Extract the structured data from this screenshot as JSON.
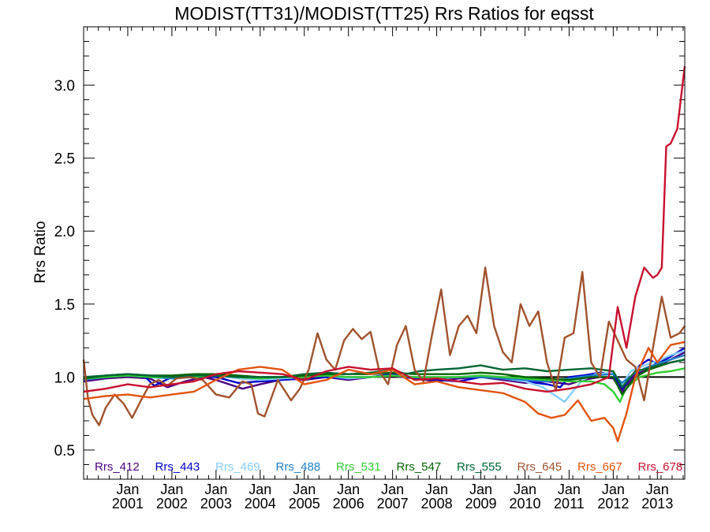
{
  "chart_data": {
    "type": "line",
    "title": "MODIST(TT31)/MODIST(TT25)  Rrs Ratios for eqsst",
    "ylabel": "Rrs Ratio",
    "xlabel": "",
    "xlim": [
      2000.0,
      2013.62
    ],
    "ylim": [
      0.3,
      3.4
    ],
    "yticks": [
      0.5,
      1.0,
      1.5,
      2.0,
      2.5,
      3.0
    ],
    "ytick_labels": [
      "0.5",
      "1.0",
      "1.5",
      "2.0",
      "2.5",
      "3.0"
    ],
    "xticks": [
      2001,
      2002,
      2003,
      2004,
      2005,
      2006,
      2007,
      2008,
      2009,
      2010,
      2011,
      2012,
      2013
    ],
    "xtick_month": "Jan",
    "xtick_years": [
      "2001",
      "2002",
      "2003",
      "2004",
      "2005",
      "2006",
      "2007",
      "2008",
      "2009",
      "2010",
      "2011",
      "2012",
      "2013"
    ],
    "reference_line": 1.0,
    "legend_placement": "bottom",
    "series": [
      {
        "name": "Rrs_412",
        "color": "#4b0082",
        "x": [
          2000.0,
          2000.5,
          2001.0,
          2001.5,
          2001.9,
          2002.3,
          2002.7,
          2003.0,
          2003.3,
          2003.6,
          2004.0,
          2004.3,
          2004.6,
          2005.0,
          2005.5,
          2006.0,
          2006.5,
          2007.0,
          2007.5,
          2008.0,
          2008.5,
          2009.0,
          2009.5,
          2010.0,
          2010.5,
          2011.0,
          2011.3,
          2011.7,
          2012.0,
          2012.2,
          2012.5,
          2012.8,
          2013.0,
          2013.3,
          2013.62
        ],
        "y": [
          0.97,
          0.99,
          1.0,
          0.99,
          0.93,
          0.97,
          1.0,
          0.98,
          0.95,
          0.92,
          0.95,
          0.97,
          0.99,
          0.98,
          1.0,
          0.98,
          1.0,
          1.01,
          0.99,
          0.97,
          0.99,
          1.0,
          0.98,
          0.96,
          0.97,
          0.95,
          0.98,
          1.0,
          0.99,
          0.9,
          1.02,
          1.05,
          1.08,
          1.12,
          1.17
        ]
      },
      {
        "name": "Rrs_443",
        "color": "#0000cd",
        "x": [
          2000.0,
          2000.5,
          2001.0,
          2001.4,
          2001.6,
          2002.0,
          2002.5,
          2003.0,
          2003.5,
          2004.0,
          2004.5,
          2005.0,
          2005.5,
          2006.0,
          2006.5,
          2007.0,
          2007.5,
          2008.0,
          2008.5,
          2009.0,
          2009.5,
          2010.0,
          2010.5,
          2010.8,
          2011.0,
          2011.3,
          2011.7,
          2012.0,
          2012.2,
          2012.4,
          2012.6,
          2012.8,
          2013.0,
          2013.3,
          2013.62
        ],
        "y": [
          0.99,
          1.0,
          1.01,
          1.0,
          0.94,
          1.0,
          1.01,
          1.0,
          0.96,
          0.97,
          0.98,
          0.99,
          1.0,
          0.99,
          1.0,
          1.02,
          0.99,
          0.98,
          0.97,
          1.0,
          0.99,
          0.97,
          0.95,
          0.93,
          1.0,
          1.01,
          1.03,
          1.02,
          0.92,
          1.0,
          1.08,
          1.12,
          1.09,
          1.14,
          1.2
        ]
      },
      {
        "name": "Rrs_469",
        "color": "#87cefa",
        "x": [
          2000.0,
          2000.5,
          2001.0,
          2001.5,
          2002.0,
          2002.5,
          2003.0,
          2003.5,
          2004.0,
          2004.5,
          2005.0,
          2005.5,
          2006.0,
          2006.5,
          2007.0,
          2007.5,
          2008.0,
          2008.5,
          2009.0,
          2009.5,
          2010.0,
          2010.4,
          2010.7,
          2010.9,
          2011.0,
          2011.3,
          2011.6,
          2012.0,
          2012.2,
          2012.4,
          2012.7,
          2013.0,
          2013.3,
          2013.62
        ],
        "y": [
          1.0,
          1.01,
          1.02,
          1.0,
          0.99,
          1.01,
          1.01,
          0.99,
          0.98,
          0.99,
          1.0,
          1.01,
          0.99,
          1.0,
          1.01,
          1.0,
          0.99,
          1.0,
          1.01,
          0.99,
          0.97,
          0.93,
          0.87,
          0.83,
          0.87,
          0.98,
          1.02,
          1.03,
          0.95,
          1.04,
          1.08,
          1.11,
          1.15,
          1.18
        ]
      },
      {
        "name": "Rrs_488",
        "color": "#1e7fc8",
        "x": [
          2000.0,
          2000.5,
          2001.0,
          2001.5,
          2002.0,
          2002.5,
          2003.0,
          2003.5,
          2004.0,
          2004.5,
          2005.0,
          2005.5,
          2006.0,
          2006.5,
          2007.0,
          2007.5,
          2008.0,
          2008.5,
          2009.0,
          2009.5,
          2010.0,
          2010.5,
          2011.0,
          2011.5,
          2012.0,
          2012.2,
          2012.5,
          2012.8,
          2013.0,
          2013.3,
          2013.62
        ],
        "y": [
          0.98,
          1.0,
          1.01,
          1.0,
          0.99,
          1.0,
          1.01,
          1.0,
          0.99,
          1.0,
          1.0,
          1.01,
          1.0,
          1.0,
          1.01,
          1.0,
          0.99,
          1.0,
          1.0,
          0.99,
          0.98,
          0.97,
          0.99,
          1.01,
          1.02,
          0.96,
          1.03,
          1.07,
          1.09,
          1.12,
          1.15
        ]
      },
      {
        "name": "Rrs_531",
        "color": "#32cd32",
        "x": [
          2000.0,
          2000.5,
          2001.0,
          2001.5,
          2002.0,
          2002.5,
          2003.0,
          2003.5,
          2004.0,
          2004.5,
          2005.0,
          2005.5,
          2006.0,
          2006.5,
          2007.0,
          2007.5,
          2008.0,
          2008.5,
          2009.0,
          2009.5,
          2010.0,
          2010.5,
          2011.0,
          2011.5,
          2011.8,
          2012.0,
          2012.15,
          2012.3,
          2012.6,
          2013.0,
          2013.3,
          2013.62
        ],
        "y": [
          0.99,
          1.0,
          1.01,
          1.0,
          1.0,
          1.0,
          1.01,
          1.0,
          0.99,
          1.0,
          1.0,
          1.01,
          1.0,
          1.0,
          1.01,
          1.0,
          1.0,
          1.0,
          1.01,
          1.0,
          0.99,
          0.98,
          0.97,
          0.97,
          0.95,
          0.9,
          0.83,
          0.93,
          1.0,
          1.03,
          1.04,
          1.06
        ]
      },
      {
        "name": "Rrs_547",
        "color": "#006400",
        "x": [
          2000.0,
          2000.5,
          2001.0,
          2001.5,
          2002.0,
          2002.5,
          2003.0,
          2003.5,
          2004.0,
          2004.5,
          2005.0,
          2005.5,
          2006.0,
          2006.5,
          2007.0,
          2007.5,
          2008.0,
          2008.5,
          2009.0,
          2009.5,
          2010.0,
          2010.5,
          2011.0,
          2011.5,
          2012.0,
          2012.2,
          2012.5,
          2012.8,
          2013.0,
          2013.3,
          2013.62
        ],
        "y": [
          0.99,
          1.01,
          1.02,
          1.01,
          1.01,
          1.02,
          1.02,
          1.01,
          1.0,
          1.0,
          1.01,
          1.02,
          1.02,
          1.02,
          1.03,
          1.02,
          1.02,
          1.02,
          1.03,
          1.02,
          1.0,
          0.99,
          0.98,
          1.0,
          1.0,
          0.88,
          1.0,
          1.05,
          1.07,
          1.1,
          1.12
        ]
      },
      {
        "name": "Rrs_555",
        "color": "#006633",
        "x": [
          2000.0,
          2000.5,
          2001.0,
          2001.5,
          2002.0,
          2002.5,
          2003.0,
          2003.5,
          2004.0,
          2004.5,
          2005.0,
          2005.5,
          2006.0,
          2006.5,
          2007.0,
          2007.3,
          2007.6,
          2008.0,
          2008.5,
          2009.0,
          2009.5,
          2010.0,
          2010.5,
          2011.0,
          2011.5,
          2012.0,
          2012.2,
          2012.5,
          2012.8,
          2013.0,
          2013.3,
          2013.62
        ],
        "y": [
          1.0,
          1.01,
          1.02,
          1.01,
          1.0,
          1.01,
          1.01,
          1.0,
          1.0,
          1.0,
          1.02,
          1.03,
          1.02,
          1.03,
          1.05,
          1.02,
          1.04,
          1.05,
          1.06,
          1.08,
          1.05,
          1.06,
          1.04,
          1.05,
          1.06,
          1.04,
          0.93,
          1.04,
          1.06,
          1.08,
          1.1,
          1.12
        ]
      },
      {
        "name": "Rrs_645",
        "color": "#a0522d",
        "x": [
          2000.0,
          2000.1,
          2000.2,
          2000.35,
          2000.5,
          2000.7,
          2000.9,
          2001.1,
          2001.3,
          2001.5,
          2001.7,
          2001.9,
          2002.1,
          2002.4,
          2002.7,
          2003.0,
          2003.3,
          2003.6,
          2003.8,
          2003.95,
          2004.1,
          2004.4,
          2004.7,
          2004.9,
          2005.1,
          2005.3,
          2005.5,
          2005.7,
          2005.9,
          2006.1,
          2006.3,
          2006.5,
          2006.7,
          2006.9,
          2007.1,
          2007.3,
          2007.5,
          2007.7,
          2007.9,
          2008.1,
          2008.3,
          2008.5,
          2008.7,
          2008.9,
          2009.1,
          2009.3,
          2009.5,
          2009.7,
          2009.9,
          2010.1,
          2010.3,
          2010.5,
          2010.7,
          2010.9,
          2011.1,
          2011.3,
          2011.5,
          2011.7,
          2011.9,
          2012.1,
          2012.3,
          2012.5,
          2012.7,
          2012.9,
          2013.1,
          2013.3,
          2013.5,
          2013.62
        ],
        "y": [
          1.12,
          0.85,
          0.74,
          0.67,
          0.79,
          0.88,
          0.82,
          0.72,
          0.84,
          0.95,
          0.98,
          0.94,
          0.99,
          1.0,
          0.98,
          0.88,
          0.86,
          0.97,
          0.95,
          0.75,
          0.73,
          0.98,
          0.84,
          0.92,
          1.05,
          1.3,
          1.12,
          1.05,
          1.25,
          1.33,
          1.26,
          1.31,
          1.04,
          0.95,
          1.22,
          1.35,
          1.05,
          0.97,
          1.3,
          1.6,
          1.15,
          1.35,
          1.42,
          1.3,
          1.75,
          1.35,
          1.17,
          1.1,
          1.5,
          1.35,
          1.45,
          1.1,
          0.91,
          1.27,
          1.3,
          1.72,
          1.1,
          1.0,
          1.38,
          1.25,
          1.12,
          1.07,
          0.84,
          1.2,
          1.55,
          1.27,
          1.3,
          1.35
        ]
      },
      {
        "name": "Rrs_667",
        "color": "#e2530f",
        "x": [
          2000.0,
          2000.5,
          2001.0,
          2001.5,
          2002.0,
          2002.5,
          2003.0,
          2003.5,
          2004.0,
          2004.5,
          2005.0,
          2005.5,
          2006.0,
          2006.5,
          2007.0,
          2007.5,
          2008.0,
          2008.5,
          2009.0,
          2009.5,
          2010.0,
          2010.3,
          2010.6,
          2010.9,
          2011.2,
          2011.5,
          2011.8,
          2012.0,
          2012.1,
          2012.3,
          2012.5,
          2012.8,
          2013.0,
          2013.3,
          2013.62
        ],
        "y": [
          0.85,
          0.87,
          0.88,
          0.86,
          0.88,
          0.9,
          0.98,
          1.05,
          1.07,
          1.05,
          0.95,
          0.98,
          1.05,
          1.02,
          1.05,
          0.95,
          0.97,
          0.93,
          0.91,
          0.89,
          0.83,
          0.75,
          0.72,
          0.74,
          0.84,
          0.7,
          0.72,
          0.65,
          0.56,
          0.75,
          1.0,
          1.2,
          1.1,
          1.22,
          1.24
        ]
      },
      {
        "name": "Rrs_678",
        "color": "#c8102e",
        "x": [
          2000.0,
          2000.5,
          2001.0,
          2001.5,
          2002.0,
          2002.5,
          2003.0,
          2003.5,
          2004.0,
          2004.5,
          2005.0,
          2005.5,
          2006.0,
          2006.5,
          2007.0,
          2007.5,
          2008.0,
          2008.5,
          2009.0,
          2009.5,
          2010.0,
          2010.5,
          2011.0,
          2011.5,
          2011.9,
          2012.1,
          2012.3,
          2012.5,
          2012.7,
          2012.9,
          2013.0,
          2013.1,
          2013.2,
          2013.3,
          2013.45,
          2013.62
        ],
        "y": [
          0.9,
          0.92,
          0.95,
          0.93,
          0.95,
          0.97,
          1.02,
          1.04,
          1.03,
          1.02,
          0.98,
          1.04,
          1.07,
          1.05,
          1.06,
          0.98,
          0.99,
          0.97,
          0.95,
          0.96,
          0.92,
          0.9,
          0.92,
          0.95,
          1.0,
          1.48,
          1.2,
          1.55,
          1.75,
          1.68,
          1.7,
          1.75,
          2.58,
          2.6,
          2.7,
          3.13
        ]
      }
    ]
  }
}
